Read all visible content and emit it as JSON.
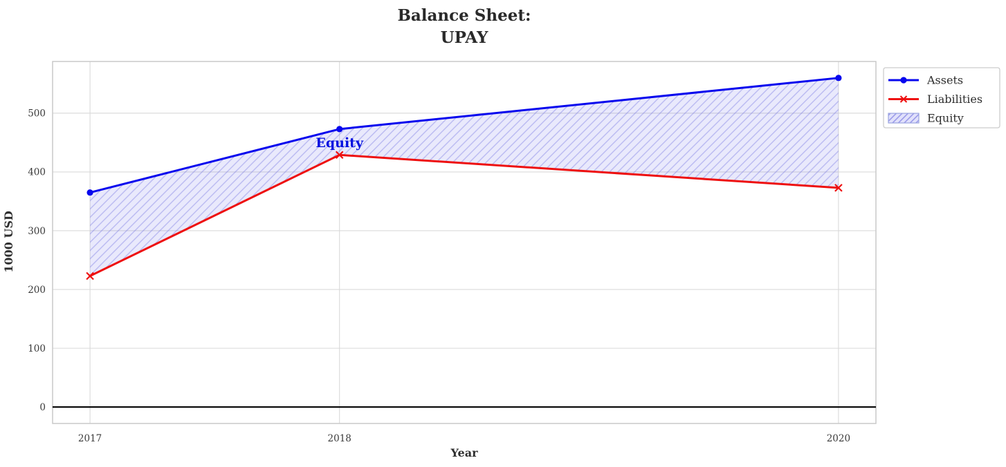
{
  "title": {
    "line1": "Balance Sheet:",
    "line2": "UPAY"
  },
  "chart_data": {
    "type": "line",
    "x": [
      2017,
      2018,
      2020
    ],
    "series": [
      {
        "name": "Assets",
        "values": [
          365,
          473,
          560
        ],
        "color": "#0707ee",
        "marker": "circle"
      },
      {
        "name": "Liabilities",
        "values": [
          223,
          429,
          373
        ],
        "color": "#ee0f0f",
        "marker": "x"
      }
    ],
    "fill_between": {
      "name": "Equity",
      "upper": "Assets",
      "lower": "Liabilities",
      "fill_color": "rgba(120,120,235,0.16)",
      "hatch_color": "rgba(110,110,225,0.42)",
      "legend_edge_color": "#9aa4e0"
    },
    "annotation": {
      "text": "Equity",
      "x": 2018,
      "y": 450,
      "color": "#0410e0"
    },
    "xlabel": "Year",
    "ylabel": "1000 USD",
    "xticks": [
      2017,
      2018,
      2020
    ],
    "yticks": [
      0,
      100,
      200,
      300,
      400,
      500
    ],
    "xlim": [
      2016.85,
      2020.15
    ],
    "ylim": [
      -28,
      588
    ],
    "zero_line": 0,
    "grid": true,
    "legend": {
      "position": "top-right-outside",
      "entries": [
        "Assets",
        "Liabilities",
        "Equity"
      ]
    },
    "colors": {
      "grid": "#d9d9d9",
      "plot_border": "#c9c9c9",
      "zero_line": "#000000",
      "text": "#2e2e2e",
      "background": "#ffffff"
    }
  }
}
